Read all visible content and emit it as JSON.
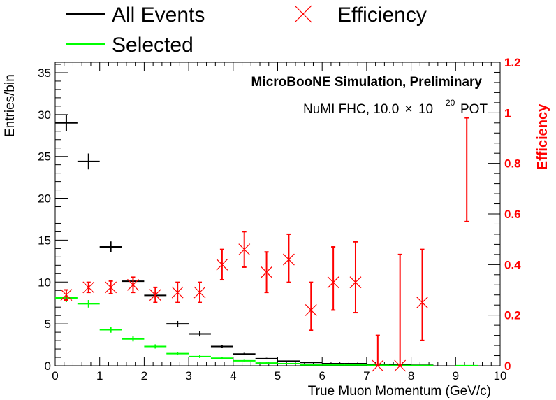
{
  "chart_data": {
    "type": "scatter",
    "title": "",
    "annotations": {
      "line1": "MicroBooNE Simulation, Preliminary",
      "line2_prefix": "NuMI FHC, 10.0",
      "line2_times": "×",
      "line2_base": "10",
      "line2_exp": "20",
      "line2_suffix": "POT"
    },
    "xlabel": "True Muon Momentum (GeV/c)",
    "ylabel": "Entries/bin",
    "y2label": "Efficiency",
    "xlim": [
      0,
      10
    ],
    "ylim": [
      0,
      36.25
    ],
    "y2lim": [
      0,
      1.2
    ],
    "x_ticks": [
      "0",
      "1",
      "2",
      "3",
      "4",
      "5",
      "6",
      "7",
      "8",
      "9",
      "10"
    ],
    "y_ticks": [
      "0",
      "5",
      "10",
      "15",
      "20",
      "25",
      "30",
      "35"
    ],
    "y2_ticks": [
      "0",
      "0.2",
      "0.4",
      "0.6",
      "0.8",
      "1",
      "1.2"
    ],
    "grid": false,
    "legend_placement": "top",
    "colors": {
      "all_events": "#000000",
      "selected": "#00ff00",
      "efficiency": "#ff0000"
    },
    "series": [
      {
        "name": "All Events",
        "axis": "left",
        "style": "histogram-errorbars",
        "bin_width": 0.5,
        "x": [
          0.25,
          0.75,
          1.25,
          1.75,
          2.25,
          2.75,
          3.25,
          3.75,
          4.25,
          4.75,
          5.25,
          5.75,
          6.25,
          6.75,
          7.25,
          7.75,
          8.25
        ],
        "values": [
          29.0,
          24.4,
          14.2,
          10.1,
          8.4,
          5.0,
          3.8,
          2.3,
          1.4,
          0.85,
          0.55,
          0.4,
          0.25,
          0.25,
          0.15,
          0.08,
          0.06
        ],
        "errors": [
          1.0,
          0.95,
          0.65,
          0.55,
          0.5,
          0.35,
          0.3,
          0.2,
          0.15,
          0.1,
          0.08,
          0.06,
          0.05,
          0.05,
          0.04,
          0.03,
          0.03
        ]
      },
      {
        "name": "Selected",
        "axis": "left",
        "style": "histogram-errorbars",
        "bin_width": 0.5,
        "x": [
          0.25,
          0.75,
          1.25,
          1.75,
          2.25,
          2.75,
          3.25,
          3.75,
          4.25,
          4.75,
          5.25,
          5.75,
          6.25,
          6.75,
          7.25,
          7.75,
          8.25,
          9.25
        ],
        "values": [
          8.1,
          7.4,
          4.3,
          3.2,
          2.3,
          1.45,
          1.1,
          0.9,
          0.6,
          0.32,
          0.25,
          0.1,
          0.1,
          0.1,
          0.05,
          0.03,
          0.03,
          0.01
        ],
        "errors": [
          0.5,
          0.45,
          0.35,
          0.3,
          0.25,
          0.2,
          0.17,
          0.15,
          0.12,
          0.09,
          0.08,
          0.05,
          0.05,
          0.05,
          0.03,
          0.02,
          0.02,
          0.01
        ]
      },
      {
        "name": "Efficiency",
        "axis": "right",
        "style": "markers-errorbars",
        "marker": "x",
        "x": [
          0.25,
          0.75,
          1.25,
          1.75,
          2.25,
          2.75,
          3.25,
          3.75,
          4.25,
          4.75,
          5.25,
          5.75,
          6.25,
          6.75,
          7.25,
          7.75,
          8.25,
          9.25
        ],
        "values": [
          0.28,
          0.31,
          0.31,
          0.32,
          0.28,
          0.29,
          0.29,
          0.4,
          0.46,
          0.37,
          0.42,
          0.22,
          0.33,
          0.33,
          0.0,
          0.0,
          0.25,
          0.0
        ],
        "err_low": [
          0.02,
          0.02,
          0.025,
          0.03,
          0.03,
          0.04,
          0.04,
          0.06,
          0.07,
          0.08,
          0.09,
          0.08,
          0.11,
          0.12,
          0.0,
          0.0,
          0.15,
          0.0
        ],
        "err_high": [
          0.02,
          0.02,
          0.025,
          0.03,
          0.03,
          0.04,
          0.04,
          0.06,
          0.07,
          0.08,
          0.1,
          0.11,
          0.14,
          0.16,
          0.12,
          0.44,
          0.21,
          0.0
        ],
        "marker_shown": [
          true,
          true,
          true,
          true,
          true,
          true,
          true,
          true,
          true,
          true,
          true,
          true,
          true,
          true,
          true,
          true,
          true,
          false
        ],
        "extra_interval": {
          "x": 9.25,
          "low": 0.57,
          "high": 0.98
        }
      }
    ]
  },
  "legend": {
    "items": [
      {
        "label": "All Events",
        "symbol": "line",
        "color": "#000000"
      },
      {
        "label": "Selected",
        "symbol": "line",
        "color": "#00ff00"
      },
      {
        "label": "Efficiency",
        "symbol": "x",
        "color": "#ff0000"
      }
    ]
  }
}
